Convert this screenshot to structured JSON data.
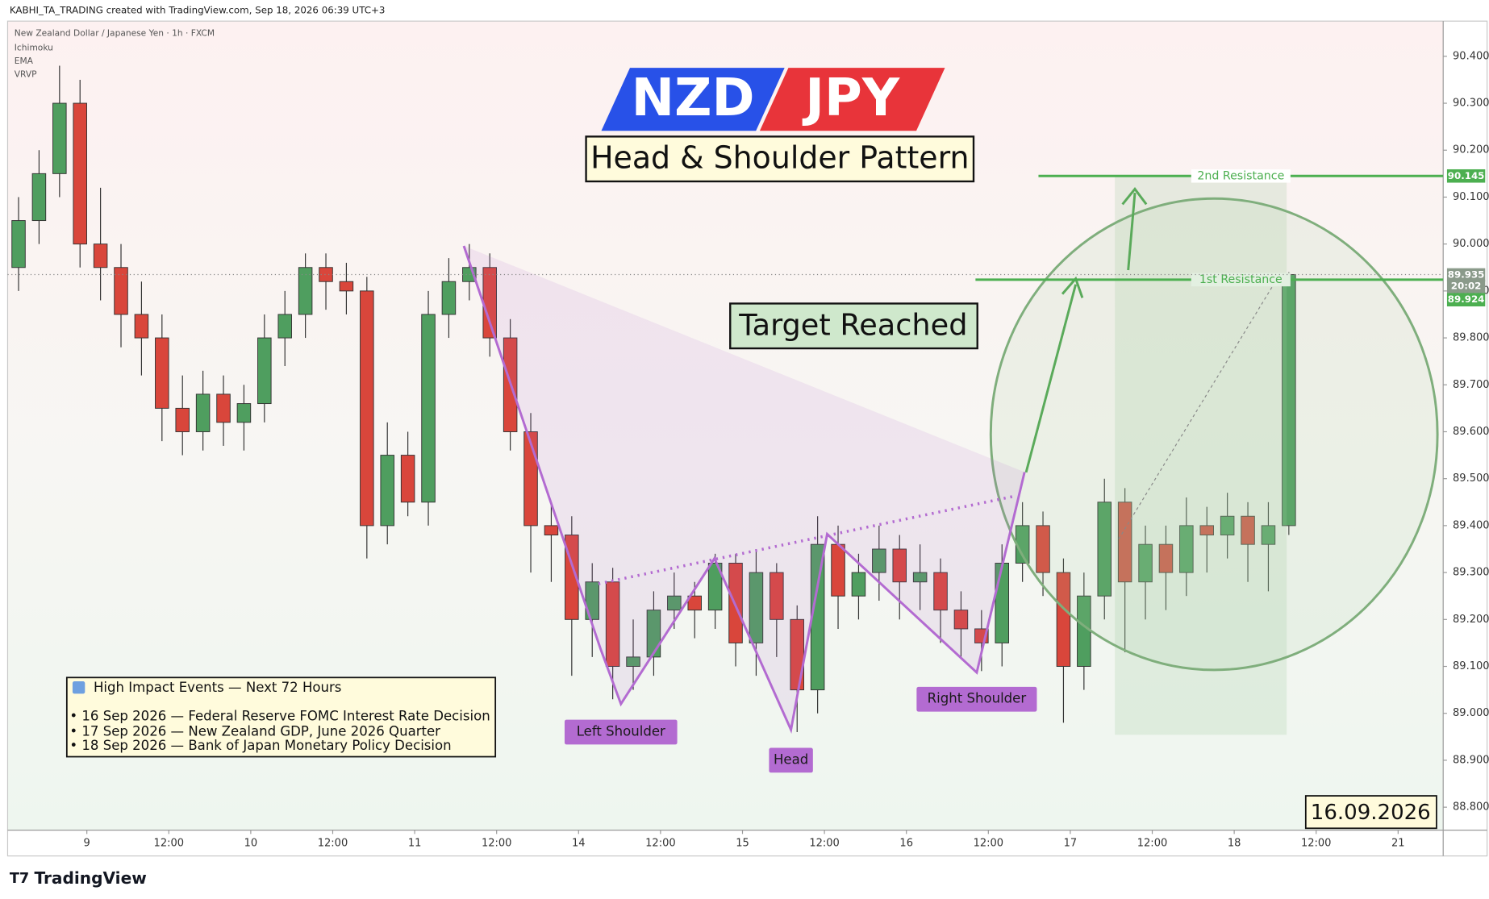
{
  "header": {
    "text": "KABHI_TA_TRADING created with TradingView.com, Sep 18, 2026 06:39 UTC+3",
    "symbol": "New Zealand Dollar / Japanese Yen · 1h · FXCM",
    "indicators": [
      "Ichimoku",
      "EMA",
      "VRVP"
    ]
  },
  "chart_data": {
    "type": "candlestick",
    "title_left": "NZD",
    "title_right": "JPY",
    "subtitle": "Head & Shoulder Pattern",
    "annotation": "Target Reached",
    "date": "16.09.2026",
    "up_color": "#4f9e5f",
    "down_color": "#d9463b",
    "x": [
      -10,
      -7,
      -4,
      -1,
      2,
      5,
      8,
      11,
      14,
      17,
      20,
      23,
      26,
      29,
      32,
      35,
      38,
      41,
      44,
      47,
      50,
      53,
      56,
      59,
      62,
      65,
      68,
      71,
      74,
      77,
      80,
      83,
      86,
      89,
      92,
      95,
      98,
      101,
      104,
      107,
      110,
      113,
      116,
      119,
      122,
      125,
      128,
      131,
      134,
      137,
      140,
      143,
      146,
      149,
      152,
      155,
      158,
      161,
      164,
      167,
      170,
      173,
      176
    ],
    "open": [
      89.95,
      90.05,
      90.15,
      90.3,
      90.0,
      89.95,
      89.85,
      89.8,
      89.65,
      89.6,
      89.68,
      89.62,
      89.66,
      89.8,
      89.85,
      89.95,
      89.92,
      89.9,
      89.4,
      89.55,
      89.45,
      89.85,
      89.92,
      89.95,
      89.8,
      89.6,
      89.4,
      89.38,
      89.2,
      89.28,
      89.1,
      89.12,
      89.22,
      89.25,
      89.22,
      89.32,
      89.15,
      89.3,
      89.2,
      89.05,
      89.36,
      89.25,
      89.3,
      89.35,
      89.28,
      89.3,
      89.22,
      89.18,
      89.15,
      89.32,
      89.4,
      89.3,
      89.1,
      89.25,
      89.45,
      89.28,
      89.36,
      89.3,
      89.4,
      89.38,
      89.42,
      89.36,
      89.4
    ],
    "high": [
      90.1,
      90.2,
      90.38,
      90.35,
      90.12,
      90.0,
      89.92,
      89.85,
      89.72,
      89.73,
      89.72,
      89.7,
      89.85,
      89.9,
      89.98,
      89.98,
      89.96,
      89.93,
      89.62,
      89.6,
      89.9,
      89.97,
      90.0,
      89.98,
      89.84,
      89.64,
      89.45,
      89.42,
      89.32,
      89.31,
      89.2,
      89.26,
      89.3,
      89.28,
      89.34,
      89.34,
      89.35,
      89.32,
      89.23,
      89.42,
      89.4,
      89.34,
      89.4,
      89.38,
      89.36,
      89.33,
      89.26,
      89.22,
      89.36,
      89.45,
      89.43,
      89.33,
      89.3,
      89.5,
      89.48,
      89.4,
      89.4,
      89.46,
      89.44,
      89.47,
      89.45,
      89.45,
      89.94
    ],
    "low": [
      89.9,
      90.0,
      90.1,
      89.95,
      89.88,
      89.78,
      89.72,
      89.58,
      89.55,
      89.56,
      89.57,
      89.56,
      89.62,
      89.74,
      89.8,
      89.86,
      89.85,
      89.33,
      89.36,
      89.42,
      89.4,
      89.8,
      89.88,
      89.76,
      89.56,
      89.3,
      89.28,
      89.08,
      89.12,
      89.03,
      89.05,
      89.08,
      89.18,
      89.16,
      89.18,
      89.1,
      89.08,
      89.12,
      88.96,
      89.0,
      89.18,
      89.2,
      89.24,
      89.2,
      89.22,
      89.15,
      89.12,
      89.09,
      89.1,
      89.28,
      89.25,
      88.98,
      89.05,
      89.2,
      89.13,
      89.2,
      89.22,
      89.25,
      89.3,
      89.33,
      89.28,
      89.26,
      89.38
    ],
    "close": [
      90.05,
      90.15,
      90.3,
      90.0,
      89.95,
      89.85,
      89.8,
      89.65,
      89.6,
      89.68,
      89.62,
      89.66,
      89.8,
      89.85,
      89.95,
      89.92,
      89.9,
      89.4,
      89.55,
      89.45,
      89.85,
      89.92,
      89.95,
      89.8,
      89.6,
      89.4,
      89.38,
      89.2,
      89.28,
      89.1,
      89.12,
      89.22,
      89.25,
      89.22,
      89.32,
      89.15,
      89.3,
      89.2,
      89.05,
      89.36,
      89.25,
      89.3,
      89.35,
      89.28,
      89.3,
      89.22,
      89.18,
      89.15,
      89.32,
      89.4,
      89.3,
      89.1,
      89.25,
      89.45,
      89.28,
      89.36,
      89.3,
      89.4,
      89.38,
      89.42,
      89.36,
      89.4,
      89.935
    ],
    "countdown": "20:02",
    "xlim": [
      -11.6,
      198.6
    ],
    "ylim": [
      88.751,
      90.475
    ],
    "xticks": [
      {
        "value": 0,
        "label": "9"
      },
      {
        "value": 12,
        "label": "12:00"
      },
      {
        "value": 24,
        "label": "10"
      },
      {
        "value": 36,
        "label": "12:00"
      },
      {
        "value": 48,
        "label": "11"
      },
      {
        "value": 60,
        "label": "12:00"
      },
      {
        "value": 72,
        "label": "14"
      },
      {
        "value": 84,
        "label": "12:00"
      },
      {
        "value": 96,
        "label": "15"
      },
      {
        "value": 108,
        "label": "12:00"
      },
      {
        "value": 120,
        "label": "16"
      },
      {
        "value": 132,
        "label": "12:00"
      },
      {
        "value": 144,
        "label": "17"
      },
      {
        "value": 156,
        "label": "12:00"
      },
      {
        "value": 168,
        "label": "18"
      },
      {
        "value": 180,
        "label": "12:00"
      },
      {
        "value": 192,
        "label": "21"
      }
    ],
    "yticks": [
      {
        "value": 90.4,
        "label": "90.400"
      },
      {
        "value": 90.3,
        "label": "90.300"
      },
      {
        "value": 90.2,
        "label": "90.200"
      },
      {
        "value": 90.1,
        "label": "90.100"
      },
      {
        "value": 90.0,
        "label": "90.000"
      },
      {
        "value": 89.9,
        "label": "89.900"
      },
      {
        "value": 89.8,
        "label": "89.800"
      },
      {
        "value": 89.7,
        "label": "89.700"
      },
      {
        "value": 89.6,
        "label": "89.600"
      },
      {
        "value": 89.5,
        "label": "89.500"
      },
      {
        "value": 89.4,
        "label": "89.400"
      },
      {
        "value": 89.3,
        "label": "89.300"
      },
      {
        "value": 89.2,
        "label": "89.200"
      },
      {
        "value": 89.1,
        "label": "89.100"
      },
      {
        "value": 89.0,
        "label": "89.000"
      },
      {
        "value": 88.9,
        "label": "88.900"
      },
      {
        "value": 88.8,
        "label": "88.800"
      }
    ],
    "resistance": [
      {
        "name": "2nd Resistance",
        "value": 90.145
      },
      {
        "name": "1st Resistance",
        "value": 89.924
      }
    ],
    "pattern": {
      "x": [
        55.2,
        75.2,
        78.2,
        91.9,
        103.1,
        108.4,
        130.3,
        137.3
      ],
      "y": [
        89.996,
        89.138,
        89.02,
        89.33,
        88.965,
        89.382,
        89.087,
        89.514
      ],
      "color": "#b36bd1"
    },
    "neckline": {
      "x": [
        74.9,
        135.9
      ],
      "y": [
        89.276,
        89.463
      ]
    },
    "pattern_labels": [
      {
        "text": "Left Shoulder",
        "x": 78.2,
        "y": 88.96
      },
      {
        "text": "Head",
        "x": 103.1,
        "y": 88.9
      },
      {
        "text": "Right Shoulder",
        "x": 130.3,
        "y": 89.03
      }
    ],
    "events": {
      "title": "High Impact Events — Next 72 Hours",
      "items": [
        "• 16 Sep 2026 — Federal Reserve FOMC Interest Rate Decision",
        "• 17 Sep 2026 — New Zealand GDP, June 2026 Quarter",
        "• 18 Sep 2026 — Bank of Japan Monetary Policy Decision"
      ]
    }
  },
  "footer": {
    "brand": "TradingView"
  }
}
